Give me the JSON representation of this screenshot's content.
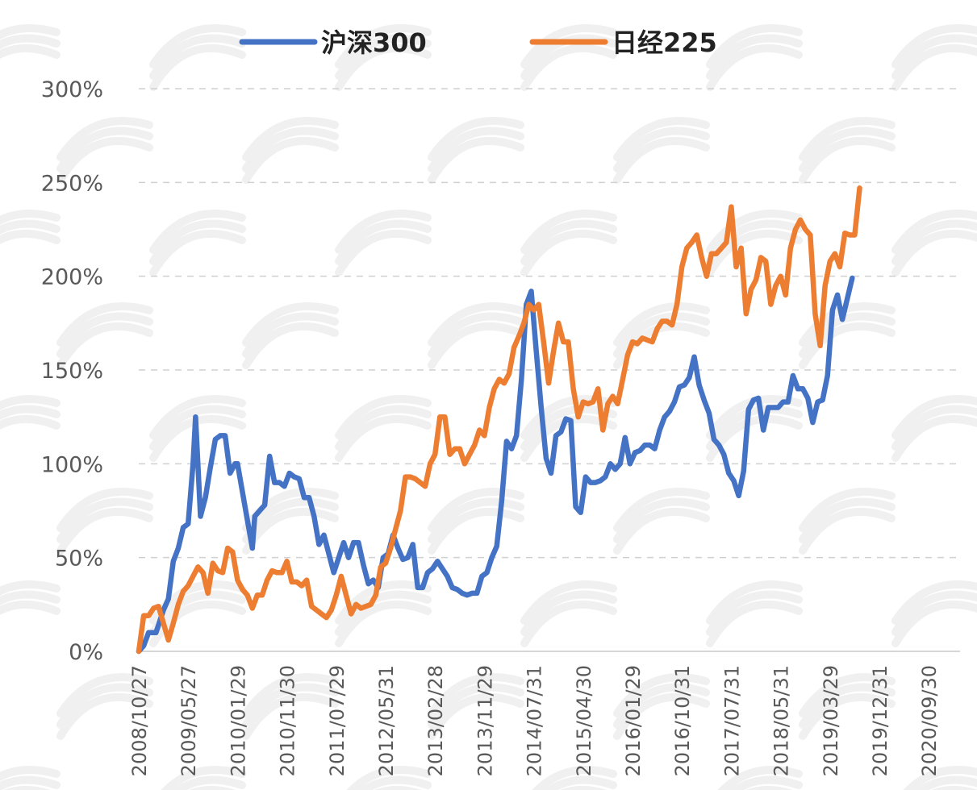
{
  "chart_data": {
    "type": "line",
    "title": "",
    "xlabel": "",
    "ylabel": "",
    "ylim": [
      0,
      300
    ],
    "yticks": [
      "0%",
      "50%",
      "100%",
      "150%",
      "200%",
      "250%",
      "300%"
    ],
    "grid": true,
    "legend_position": "top-center",
    "x_tick_labels": [
      "2008/10/27",
      "2009/05/27",
      "2010/01/29",
      "2010/11/30",
      "2011/07/29",
      "2012/05/31",
      "2013/02/28",
      "2013/11/29",
      "2014/07/31",
      "2015/04/30",
      "2016/01/29",
      "2016/10/31",
      "2017/07/31",
      "2018/05/31",
      "2019/03/29",
      "2019/12/31",
      "2020/09/30"
    ],
    "x": [
      0,
      1,
      2,
      3,
      4,
      5,
      6,
      7,
      8,
      9,
      10,
      11,
      12,
      13,
      14,
      15,
      16
    ],
    "series": [
      {
        "name": "沪深300",
        "color": "#4472C4",
        "points": [
          [
            0,
            0
          ],
          [
            0.1,
            3
          ],
          [
            0.2,
            10
          ],
          [
            0.35,
            10
          ],
          [
            0.5,
            22
          ],
          [
            0.6,
            28
          ],
          [
            0.7,
            48
          ],
          [
            0.8,
            55
          ],
          [
            0.9,
            66
          ],
          [
            1.0,
            68
          ],
          [
            1.1,
            100
          ],
          [
            1.15,
            125
          ],
          [
            1.25,
            72
          ],
          [
            1.35,
            82
          ],
          [
            1.45,
            98
          ],
          [
            1.55,
            113
          ],
          [
            1.65,
            115
          ],
          [
            1.75,
            115
          ],
          [
            1.85,
            95
          ],
          [
            1.95,
            100
          ],
          [
            2.0,
            100
          ],
          [
            2.1,
            85
          ],
          [
            2.2,
            70
          ],
          [
            2.3,
            55
          ],
          [
            2.35,
            72
          ],
          [
            2.45,
            75
          ],
          [
            2.55,
            78
          ],
          [
            2.65,
            104
          ],
          [
            2.75,
            90
          ],
          [
            2.85,
            90
          ],
          [
            2.95,
            88
          ],
          [
            3.05,
            95
          ],
          [
            3.15,
            93
          ],
          [
            3.25,
            92
          ],
          [
            3.35,
            82
          ],
          [
            3.45,
            82
          ],
          [
            3.55,
            72
          ],
          [
            3.65,
            57
          ],
          [
            3.75,
            62
          ],
          [
            3.85,
            52
          ],
          [
            3.95,
            42
          ],
          [
            4.05,
            50
          ],
          [
            4.15,
            58
          ],
          [
            4.25,
            50
          ],
          [
            4.35,
            58
          ],
          [
            4.45,
            58
          ],
          [
            4.55,
            46
          ],
          [
            4.65,
            36
          ],
          [
            4.75,
            38
          ],
          [
            4.85,
            34
          ],
          [
            4.95,
            50
          ],
          [
            5.05,
            52
          ],
          [
            5.15,
            62
          ],
          [
            5.25,
            55
          ],
          [
            5.35,
            49
          ],
          [
            5.45,
            50
          ],
          [
            5.55,
            57
          ],
          [
            5.65,
            34
          ],
          [
            5.75,
            34
          ],
          [
            5.85,
            42
          ],
          [
            5.95,
            44
          ],
          [
            6.05,
            48
          ],
          [
            6.15,
            44
          ],
          [
            6.25,
            40
          ],
          [
            6.35,
            34
          ],
          [
            6.45,
            33
          ],
          [
            6.55,
            31
          ],
          [
            6.65,
            30
          ],
          [
            6.75,
            31
          ],
          [
            6.85,
            31
          ],
          [
            6.95,
            40
          ],
          [
            7.05,
            42
          ],
          [
            7.15,
            50
          ],
          [
            7.25,
            56
          ],
          [
            7.35,
            80
          ],
          [
            7.45,
            112
          ],
          [
            7.55,
            108
          ],
          [
            7.65,
            115
          ],
          [
            7.75,
            145
          ],
          [
            7.85,
            185
          ],
          [
            7.95,
            192
          ],
          [
            8.05,
            160
          ],
          [
            8.15,
            130
          ],
          [
            8.25,
            103
          ],
          [
            8.35,
            95
          ],
          [
            8.45,
            115
          ],
          [
            8.55,
            117
          ],
          [
            8.65,
            124
          ],
          [
            8.75,
            123
          ],
          [
            8.85,
            77
          ],
          [
            8.95,
            74
          ],
          [
            9.05,
            93
          ],
          [
            9.15,
            90
          ],
          [
            9.25,
            90
          ],
          [
            9.35,
            91
          ],
          [
            9.45,
            93
          ],
          [
            9.55,
            100
          ],
          [
            9.65,
            97
          ],
          [
            9.75,
            100
          ],
          [
            9.85,
            114
          ],
          [
            9.95,
            100
          ],
          [
            10.05,
            106
          ],
          [
            10.15,
            107
          ],
          [
            10.25,
            110
          ],
          [
            10.35,
            110
          ],
          [
            10.45,
            108
          ],
          [
            10.55,
            118
          ],
          [
            10.65,
            125
          ],
          [
            10.75,
            128
          ],
          [
            10.85,
            133
          ],
          [
            10.95,
            141
          ],
          [
            11.05,
            142
          ],
          [
            11.15,
            146
          ],
          [
            11.25,
            157
          ],
          [
            11.35,
            142
          ],
          [
            11.45,
            134
          ],
          [
            11.55,
            127
          ],
          [
            11.65,
            113
          ],
          [
            11.75,
            110
          ],
          [
            11.85,
            105
          ],
          [
            11.95,
            95
          ],
          [
            12.05,
            91
          ],
          [
            12.15,
            83
          ],
          [
            12.25,
            96
          ],
          [
            12.35,
            129
          ],
          [
            12.45,
            134
          ],
          [
            12.55,
            135
          ],
          [
            12.65,
            118
          ],
          [
            12.75,
            130
          ],
          [
            12.85,
            130
          ],
          [
            12.95,
            130
          ],
          [
            13.05,
            133
          ],
          [
            13.15,
            133
          ],
          [
            13.25,
            147
          ],
          [
            13.35,
            140
          ],
          [
            13.45,
            140
          ],
          [
            13.55,
            135
          ],
          [
            13.65,
            122
          ],
          [
            13.75,
            133
          ],
          [
            13.85,
            134
          ],
          [
            13.95,
            147
          ],
          [
            14.05,
            182
          ],
          [
            14.15,
            190
          ],
          [
            14.25,
            177
          ],
          [
            14.35,
            188
          ],
          [
            14.45,
            199
          ]
        ]
      },
      {
        "name": "日经225",
        "color": "#ED7D31",
        "points": [
          [
            0,
            0
          ],
          [
            0.1,
            19
          ],
          [
            0.2,
            19
          ],
          [
            0.3,
            23
          ],
          [
            0.4,
            24
          ],
          [
            0.5,
            15
          ],
          [
            0.6,
            6
          ],
          [
            0.7,
            15
          ],
          [
            0.8,
            25
          ],
          [
            0.9,
            32
          ],
          [
            1.0,
            35
          ],
          [
            1.1,
            40
          ],
          [
            1.2,
            45
          ],
          [
            1.3,
            42
          ],
          [
            1.4,
            31
          ],
          [
            1.5,
            47
          ],
          [
            1.6,
            43
          ],
          [
            1.7,
            42
          ],
          [
            1.8,
            55
          ],
          [
            1.9,
            53
          ],
          [
            2.0,
            38
          ],
          [
            2.1,
            33
          ],
          [
            2.2,
            30
          ],
          [
            2.3,
            23
          ],
          [
            2.4,
            30
          ],
          [
            2.5,
            30
          ],
          [
            2.6,
            38
          ],
          [
            2.7,
            43
          ],
          [
            2.8,
            42
          ],
          [
            2.9,
            42
          ],
          [
            3.0,
            48
          ],
          [
            3.1,
            37
          ],
          [
            3.2,
            37
          ],
          [
            3.3,
            35
          ],
          [
            3.4,
            38
          ],
          [
            3.5,
            24
          ],
          [
            3.6,
            22
          ],
          [
            3.7,
            20
          ],
          [
            3.8,
            18
          ],
          [
            3.9,
            22
          ],
          [
            4.0,
            30
          ],
          [
            4.1,
            40
          ],
          [
            4.2,
            30
          ],
          [
            4.3,
            20
          ],
          [
            4.4,
            25
          ],
          [
            4.5,
            23
          ],
          [
            4.6,
            24
          ],
          [
            4.7,
            25
          ],
          [
            4.8,
            30
          ],
          [
            4.9,
            45
          ],
          [
            5.0,
            47
          ],
          [
            5.1,
            55
          ],
          [
            5.2,
            65
          ],
          [
            5.3,
            75
          ],
          [
            5.4,
            93
          ],
          [
            5.5,
            93
          ],
          [
            5.6,
            92
          ],
          [
            5.7,
            90
          ],
          [
            5.8,
            88
          ],
          [
            5.9,
            100
          ],
          [
            6.0,
            105
          ],
          [
            6.1,
            125
          ],
          [
            6.2,
            125
          ],
          [
            6.3,
            105
          ],
          [
            6.4,
            108
          ],
          [
            6.5,
            108
          ],
          [
            6.6,
            100
          ],
          [
            6.7,
            105
          ],
          [
            6.8,
            110
          ],
          [
            6.9,
            118
          ],
          [
            7.0,
            115
          ],
          [
            7.1,
            130
          ],
          [
            7.2,
            140
          ],
          [
            7.3,
            145
          ],
          [
            7.4,
            143
          ],
          [
            7.5,
            148
          ],
          [
            7.6,
            162
          ],
          [
            7.7,
            168
          ],
          [
            7.8,
            175
          ],
          [
            7.9,
            185
          ],
          [
            8.0,
            182
          ],
          [
            8.1,
            185
          ],
          [
            8.2,
            165
          ],
          [
            8.3,
            143
          ],
          [
            8.4,
            160
          ],
          [
            8.5,
            175
          ],
          [
            8.6,
            165
          ],
          [
            8.7,
            165
          ],
          [
            8.8,
            140
          ],
          [
            8.9,
            125
          ],
          [
            9.0,
            133
          ],
          [
            9.1,
            132
          ],
          [
            9.2,
            133
          ],
          [
            9.3,
            140
          ],
          [
            9.4,
            118
          ],
          [
            9.5,
            132
          ],
          [
            9.6,
            136
          ],
          [
            9.7,
            132
          ],
          [
            9.8,
            145
          ],
          [
            9.9,
            158
          ],
          [
            10.0,
            165
          ],
          [
            10.1,
            164
          ],
          [
            10.2,
            167
          ],
          [
            10.3,
            166
          ],
          [
            10.4,
            165
          ],
          [
            10.5,
            172
          ],
          [
            10.6,
            176
          ],
          [
            10.7,
            176
          ],
          [
            10.8,
            174
          ],
          [
            10.9,
            185
          ],
          [
            11.0,
            205
          ],
          [
            11.1,
            215
          ],
          [
            11.2,
            218
          ],
          [
            11.3,
            222
          ],
          [
            11.4,
            210
          ],
          [
            11.5,
            200
          ],
          [
            11.6,
            212
          ],
          [
            11.7,
            212
          ],
          [
            11.8,
            215
          ],
          [
            11.9,
            218
          ],
          [
            12.0,
            237
          ],
          [
            12.1,
            205
          ],
          [
            12.2,
            215
          ],
          [
            12.3,
            180
          ],
          [
            12.4,
            193
          ],
          [
            12.5,
            198
          ],
          [
            12.6,
            210
          ],
          [
            12.7,
            208
          ],
          [
            12.8,
            185
          ],
          [
            12.9,
            195
          ],
          [
            13.0,
            200
          ],
          [
            13.1,
            190
          ],
          [
            13.2,
            215
          ],
          [
            13.3,
            225
          ],
          [
            13.4,
            230
          ],
          [
            13.5,
            225
          ],
          [
            13.6,
            222
          ],
          [
            13.7,
            180
          ],
          [
            13.8,
            163
          ],
          [
            13.9,
            195
          ],
          [
            14.0,
            208
          ],
          [
            14.1,
            212
          ],
          [
            14.2,
            205
          ],
          [
            14.3,
            223
          ],
          [
            14.4,
            222
          ],
          [
            14.5,
            222
          ],
          [
            14.6,
            247
          ]
        ]
      }
    ]
  }
}
